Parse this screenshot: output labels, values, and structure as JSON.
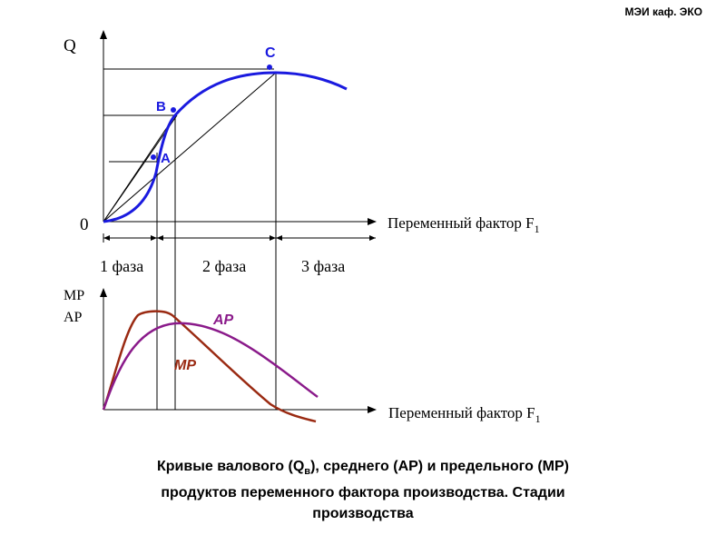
{
  "header": {
    "text": "МЭИ каф. ЭКО"
  },
  "top_chart": {
    "y_label": "Q",
    "origin_label": "0",
    "x_label_main": "Переменный фактор F",
    "x_label_sub": "1",
    "points": {
      "a": "A",
      "b": "B",
      "c": "C"
    }
  },
  "phases": [
    "1 фаза",
    "2 фаза",
    "3 фаза"
  ],
  "bottom_chart": {
    "y_label_1": "MP",
    "y_label_2": "AP",
    "ap_label": "AP",
    "mp_label": "MP",
    "x_label_main": "Переменный фактор F",
    "x_label_sub": "1"
  },
  "colors": {
    "tp_curve": "#1a1adf",
    "ap_curve": "#8a1a8a",
    "mp_curve": "#9a2a12",
    "axis": "#000000"
  },
  "caption": {
    "part1": "Кривые валового (Q",
    "sub": "в",
    "part2": "), среднего (АР) и предельного (МР)",
    "line2": "продуктов переменного фактора производства. Стадии",
    "line3": "производства"
  }
}
